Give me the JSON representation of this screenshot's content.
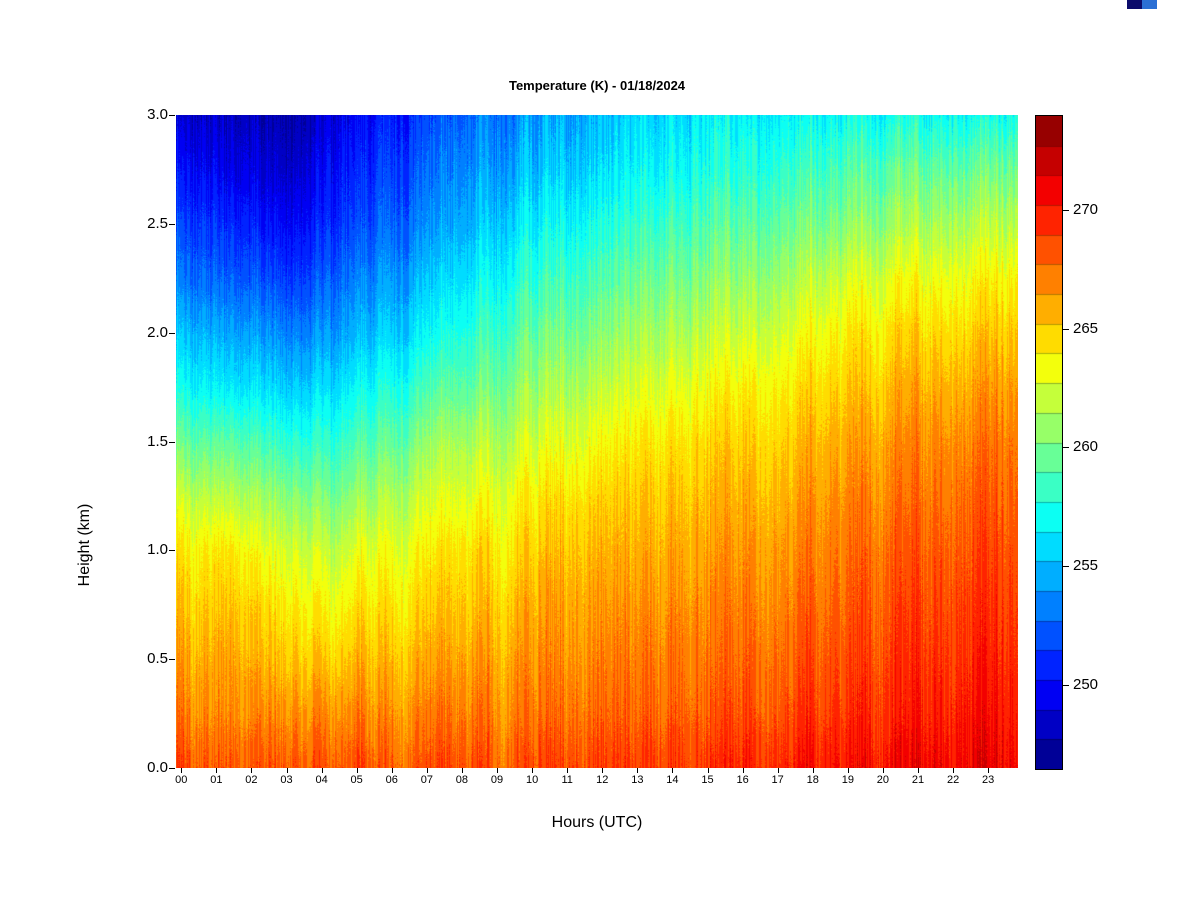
{
  "page": {
    "background_color": "#ffffff",
    "text_color": "#000000"
  },
  "corner_artifact": {
    "colors": [
      "#0b0b6b",
      "#2b6fd4"
    ]
  },
  "chart_data": {
    "type": "heatmap",
    "title": "Temperature (K) - 01/18/2024",
    "xlabel": "Hours (UTC)",
    "ylabel": "Height (km)",
    "z_units": "K",
    "colormap": "jet",
    "grid": false,
    "x_range": [
      0,
      24
    ],
    "y_range": [
      0,
      3
    ],
    "z_min": 246.5,
    "z_max": 274,
    "band_step_K": 1.25,
    "x_hours": [
      0,
      1,
      2,
      3,
      4,
      5,
      6,
      7,
      8,
      9,
      10,
      11,
      12,
      13,
      14,
      15,
      16,
      17,
      18,
      19,
      20,
      21,
      22,
      23
    ],
    "y_heights_km": [
      0.0,
      0.25,
      0.5,
      0.75,
      1.0,
      1.25,
      1.5,
      1.75,
      2.0,
      2.25,
      2.5,
      2.75,
      3.0
    ],
    "values_by_hour": [
      [
        268.5,
        267.0,
        266.0,
        265.0,
        264.0,
        262.0,
        259.5,
        257.0,
        255.0,
        253.0,
        251.5,
        250.0,
        248.5
      ],
      [
        268.5,
        267.2,
        266.5,
        265.5,
        264.5,
        262.0,
        259.5,
        256.5,
        254.5,
        252.5,
        251.0,
        249.3,
        248.3
      ],
      [
        268.3,
        266.8,
        265.5,
        264.5,
        263.0,
        261.0,
        258.5,
        256.0,
        254.0,
        252.0,
        250.3,
        248.8,
        248.0
      ],
      [
        268.3,
        266.8,
        265.2,
        264.0,
        262.5,
        260.5,
        258.0,
        255.5,
        253.5,
        251.5,
        250.0,
        248.7,
        247.8
      ],
      [
        268.3,
        266.8,
        265.0,
        263.5,
        262.0,
        260.0,
        258.0,
        256.0,
        254.0,
        252.5,
        251.0,
        250.0,
        249.0
      ],
      [
        268.3,
        266.8,
        265.5,
        264.3,
        263.0,
        261.0,
        259.0,
        257.0,
        255.0,
        253.5,
        252.0,
        251.0,
        250.0
      ],
      [
        268.3,
        267.0,
        265.8,
        264.6,
        263.5,
        262.0,
        260.0,
        258.0,
        256.0,
        254.5,
        253.0,
        252.0,
        251.0
      ],
      [
        268.4,
        267.2,
        266.0,
        265.0,
        264.0,
        262.5,
        261.0,
        259.0,
        257.0,
        255.5,
        254.0,
        253.0,
        252.0
      ],
      [
        268.4,
        267.2,
        266.2,
        265.2,
        264.5,
        263.0,
        261.5,
        259.5,
        258.0,
        256.5,
        255.0,
        254.0,
        253.0
      ],
      [
        268.4,
        267.3,
        266.5,
        265.5,
        264.5,
        263.5,
        262.0,
        260.5,
        259.0,
        257.5,
        256.0,
        254.5,
        253.5
      ],
      [
        268.6,
        267.4,
        266.6,
        266.0,
        265.0,
        264.0,
        262.5,
        261.0,
        259.5,
        258.0,
        256.5,
        255.0,
        254.0
      ],
      [
        268.8,
        267.6,
        266.8,
        266.2,
        265.5,
        264.5,
        263.0,
        261.5,
        260.0,
        258.5,
        257.0,
        255.5,
        254.5
      ],
      [
        268.8,
        267.7,
        267.0,
        266.3,
        265.5,
        264.7,
        263.5,
        262.0,
        260.5,
        259.0,
        257.5,
        256.0,
        255.0
      ],
      [
        268.8,
        267.8,
        267.1,
        266.5,
        265.7,
        265.0,
        264.0,
        262.5,
        261.0,
        259.5,
        258.0,
        256.5,
        255.5
      ],
      [
        269.0,
        268.0,
        267.3,
        266.7,
        266.0,
        265.2,
        264.3,
        263.0,
        261.5,
        260.0,
        258.5,
        257.0,
        256.0
      ],
      [
        269.5,
        268.3,
        267.6,
        267.0,
        266.3,
        265.6,
        264.8,
        263.5,
        262.0,
        260.5,
        259.0,
        257.5,
        256.5
      ],
      [
        269.6,
        268.5,
        267.8,
        267.2,
        266.6,
        265.8,
        265.0,
        264.0,
        262.5,
        261.0,
        259.5,
        258.0,
        256.8
      ],
      [
        270.0,
        268.8,
        268.1,
        267.5,
        266.8,
        266.1,
        265.3,
        264.3,
        263.0,
        261.5,
        260.0,
        258.5,
        257.0
      ],
      [
        270.0,
        269.0,
        268.3,
        267.7,
        267.1,
        266.5,
        265.7,
        264.7,
        263.5,
        262.0,
        260.0,
        258.5,
        256.8
      ],
      [
        270.2,
        269.2,
        268.6,
        268.0,
        267.5,
        266.8,
        266.0,
        265.0,
        264.0,
        262.5,
        260.5,
        259.0,
        257.0
      ],
      [
        270.5,
        269.6,
        269.0,
        268.5,
        267.9,
        267.2,
        266.5,
        265.5,
        264.4,
        263.0,
        261.0,
        259.3,
        257.2
      ],
      [
        270.8,
        269.9,
        269.3,
        268.8,
        268.2,
        267.6,
        267.0,
        266.0,
        264.8,
        263.4,
        261.5,
        259.6,
        257.3
      ],
      [
        271.0,
        270.3,
        269.7,
        269.2,
        268.6,
        268.0,
        267.2,
        266.2,
        265.0,
        263.6,
        261.8,
        259.8,
        257.4
      ],
      [
        271.0,
        270.4,
        269.8,
        269.3,
        268.8,
        268.2,
        267.6,
        266.6,
        265.4,
        264.0,
        262.0,
        260.0,
        257.5
      ]
    ],
    "x_ticks": [
      {
        "label": "00",
        "hour": 0
      },
      {
        "label": "01",
        "hour": 1
      },
      {
        "label": "02",
        "hour": 2
      },
      {
        "label": "03",
        "hour": 3
      },
      {
        "label": "04",
        "hour": 4
      },
      {
        "label": "05",
        "hour": 5
      },
      {
        "label": "06",
        "hour": 6
      },
      {
        "label": "07",
        "hour": 7
      },
      {
        "label": "08",
        "hour": 8
      },
      {
        "label": "09",
        "hour": 9
      },
      {
        "label": "10",
        "hour": 10
      },
      {
        "label": "11",
        "hour": 11
      },
      {
        "label": "12",
        "hour": 12
      },
      {
        "label": "13",
        "hour": 13
      },
      {
        "label": "14",
        "hour": 14
      },
      {
        "label": "15",
        "hour": 15
      },
      {
        "label": "16",
        "hour": 16
      },
      {
        "label": "17",
        "hour": 17
      },
      {
        "label": "18",
        "hour": 18
      },
      {
        "label": "19",
        "hour": 19
      },
      {
        "label": "20",
        "hour": 20
      },
      {
        "label": "21",
        "hour": 21
      },
      {
        "label": "22",
        "hour": 22
      },
      {
        "label": "23",
        "hour": 23
      }
    ],
    "y_ticks": [
      {
        "label": "0.0",
        "km": 0.0
      },
      {
        "label": "0.5",
        "km": 0.5
      },
      {
        "label": "1.0",
        "km": 1.0
      },
      {
        "label": "1.5",
        "km": 1.5
      },
      {
        "label": "2.0",
        "km": 2.0
      },
      {
        "label": "2.5",
        "km": 2.5
      },
      {
        "label": "3.0",
        "km": 3.0
      }
    ],
    "colorbar_ticks": [
      {
        "label": "250",
        "K": 250
      },
      {
        "label": "255",
        "K": 255
      },
      {
        "label": "260",
        "K": 260
      },
      {
        "label": "265",
        "K": 265
      },
      {
        "label": "270",
        "K": 270
      }
    ],
    "legend_position": "right"
  }
}
